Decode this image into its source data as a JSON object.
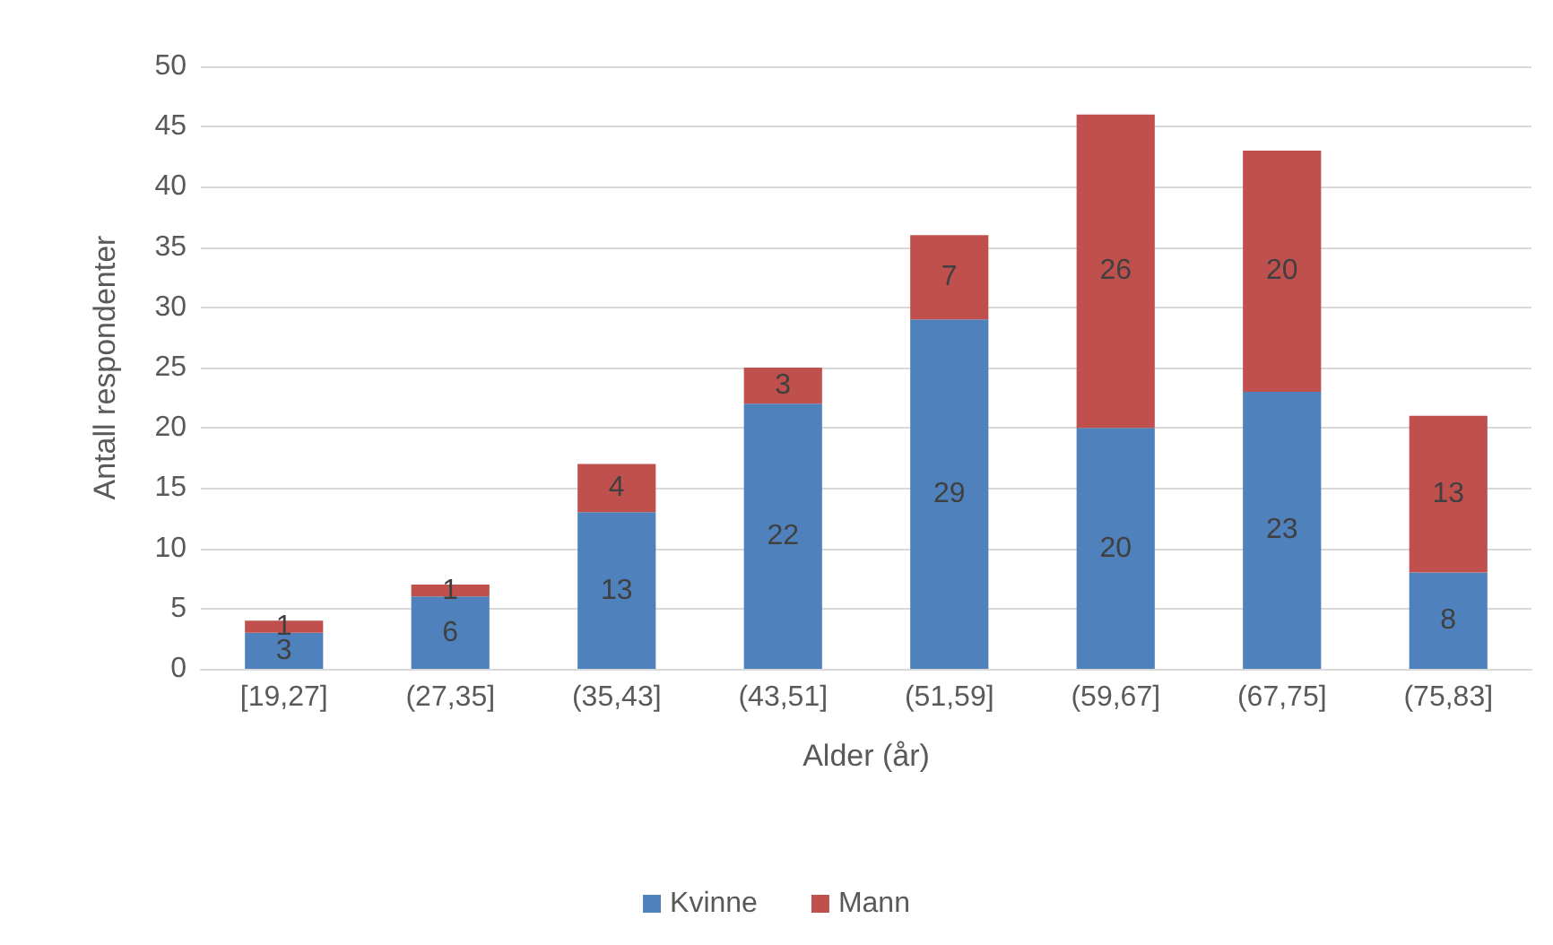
{
  "chart_data": {
    "type": "bar",
    "stacked": true,
    "xlabel": "Alder (år)",
    "ylabel": "Antall respondenter",
    "categories": [
      "[19,27]",
      "(27,35]",
      "(35,43]",
      "(43,51]",
      "(51,59]",
      "(59,67]",
      "(67,75]",
      "(75,83]"
    ],
    "series": [
      {
        "name": "Kvinne",
        "color": "#4f81bd",
        "values": [
          3,
          6,
          13,
          22,
          29,
          20,
          23,
          8
        ]
      },
      {
        "name": "Mann",
        "color": "#c0504d",
        "values": [
          1,
          1,
          4,
          3,
          7,
          26,
          20,
          13
        ]
      }
    ],
    "ylim": [
      0,
      50
    ],
    "yticks": [
      0,
      5,
      10,
      15,
      20,
      25,
      30,
      35,
      40,
      45,
      50
    ],
    "grid": "y",
    "legend": "bottom",
    "data_labels": true
  }
}
